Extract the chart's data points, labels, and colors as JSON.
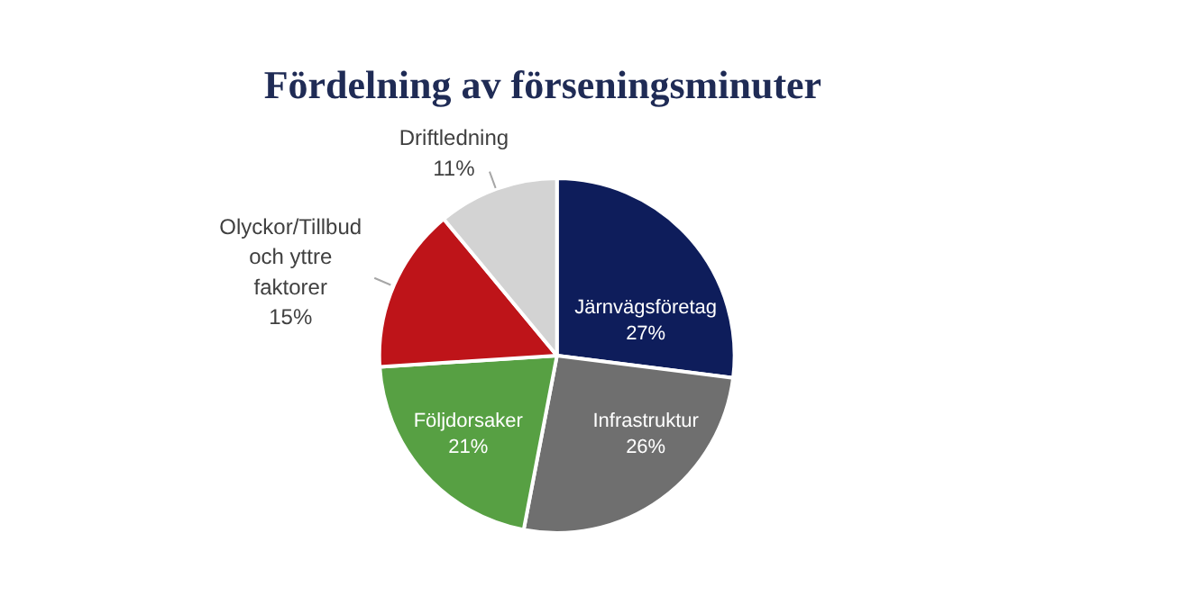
{
  "chart_data": {
    "type": "pie",
    "title": "Fördelning av förseningsminuter",
    "categories": [
      "Järnvägsföretag",
      "Infrastruktur",
      "Följdorsaker",
      "Olyckor/Tillbud och yttre faktorer",
      "Driftledning"
    ],
    "values": [
      27,
      26,
      21,
      15,
      11
    ],
    "value_labels": [
      "27%",
      "26%",
      "21%",
      "15%",
      "11%"
    ],
    "colors": [
      "#0e1d5b",
      "#6f6f6f",
      "#57a043",
      "#be1419",
      "#d3d3d3"
    ],
    "legend": false
  }
}
